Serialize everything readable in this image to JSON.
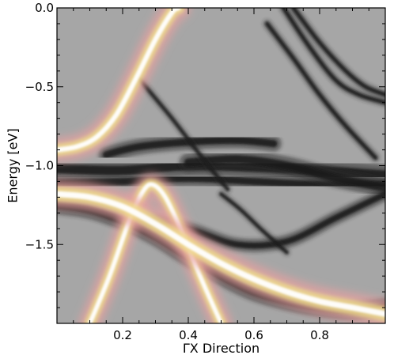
{
  "chart_data": {
    "type": "heatmap",
    "title": "",
    "xlabel": "ΓX Direction",
    "ylabel": "Energy [eV]",
    "xlim": [
      0.0,
      1.0
    ],
    "ylim": [
      -2.0,
      0.0
    ],
    "x_ticks": [
      {
        "value": 0.2,
        "label": "0.2"
      },
      {
        "value": 0.4,
        "label": "0.4"
      },
      {
        "value": 0.6,
        "label": "0.6"
      },
      {
        "value": 0.8,
        "label": "0.8"
      }
    ],
    "y_ticks": [
      {
        "value": 0.0,
        "label": "0.0"
      },
      {
        "value": -0.5,
        "label": "−0.5"
      },
      {
        "value": -1.0,
        "label": "−1.0"
      },
      {
        "value": -1.5,
        "label": "−1.5"
      }
    ],
    "background_color": "#a6a6a6",
    "series": [
      {
        "style": "dark",
        "width": 0.04,
        "x": [
          0.0,
          0.2,
          0.4,
          0.6,
          0.8,
          1.0
        ],
        "y": [
          -1.02,
          -1.03,
          -1.0,
          -1.01,
          -1.03,
          -1.06
        ]
      },
      {
        "style": "dark",
        "width": 0.03,
        "x": [
          0.0,
          0.2,
          0.4,
          0.6,
          0.8,
          1.0
        ],
        "y": [
          -1.11,
          -1.1,
          -1.08,
          -1.1,
          -1.12,
          -1.12
        ]
      },
      {
        "style": "dark",
        "width": 0.03,
        "x": [
          0.15,
          0.25,
          0.4,
          0.55,
          0.66
        ],
        "y": [
          -0.93,
          -0.88,
          -0.85,
          -0.84,
          -0.86
        ]
      },
      {
        "style": "dark",
        "width": 0.035,
        "x": [
          0.4,
          0.55,
          0.7,
          0.85,
          1.0
        ],
        "y": [
          -0.98,
          -0.96,
          -1.0,
          -1.08,
          -1.14
        ]
      },
      {
        "style": "dark",
        "width": 0.035,
        "x": [
          0.0,
          0.1,
          0.2,
          0.3,
          0.4,
          0.5,
          0.6,
          0.7,
          0.8,
          0.9,
          1.0
        ],
        "y": [
          -1.25,
          -1.28,
          -1.35,
          -1.45,
          -1.58,
          -1.7,
          -1.8,
          -1.86,
          -1.9,
          -1.92,
          -1.9
        ]
      },
      {
        "style": "dark",
        "width": 0.025,
        "x": [
          0.24,
          0.4,
          0.55,
          0.7,
          0.85,
          1.0
        ],
        "y": [
          -1.33,
          -1.4,
          -1.5,
          -1.48,
          -1.33,
          -1.18
        ]
      },
      {
        "style": "dark",
        "width": 0.015,
        "x": [
          0.72,
          0.8,
          0.88,
          0.94,
          1.0
        ],
        "y": [
          0.0,
          -0.22,
          -0.4,
          -0.5,
          -0.55
        ]
      },
      {
        "style": "dark",
        "width": 0.015,
        "x": [
          0.69,
          0.77,
          0.85,
          0.92,
          1.0
        ],
        "y": [
          0.0,
          -0.25,
          -0.46,
          -0.55,
          -0.6
        ]
      },
      {
        "style": "dark",
        "width": 0.015,
        "x": [
          0.64,
          0.72,
          0.8,
          0.88,
          0.97
        ],
        "y": [
          -0.1,
          -0.32,
          -0.55,
          -0.75,
          -0.95
        ]
      },
      {
        "style": "dark",
        "width": 0.012,
        "x": [
          0.25,
          0.35,
          0.45,
          0.52
        ],
        "y": [
          -0.45,
          -0.7,
          -0.97,
          -1.15
        ]
      },
      {
        "style": "dark",
        "width": 0.012,
        "x": [
          0.5,
          0.56,
          0.62,
          0.7
        ],
        "y": [
          -1.18,
          -1.28,
          -1.4,
          -1.55
        ]
      },
      {
        "style": "bright",
        "width": 0.05,
        "x": [
          0.0,
          0.06,
          0.12,
          0.18,
          0.24,
          0.3,
          0.35,
          0.37
        ],
        "y": [
          -0.9,
          -0.88,
          -0.82,
          -0.68,
          -0.45,
          -0.2,
          -0.03,
          0.0
        ]
      },
      {
        "style": "bright",
        "width": 0.045,
        "x": [
          0.1,
          0.16,
          0.22,
          0.26,
          0.29,
          0.33,
          0.38,
          0.44,
          0.5
        ],
        "y": [
          -2.0,
          -1.7,
          -1.35,
          -1.17,
          -1.12,
          -1.2,
          -1.42,
          -1.72,
          -2.0
        ]
      },
      {
        "style": "bright",
        "width": 0.06,
        "x": [
          0.0,
          0.1,
          0.2,
          0.3,
          0.4,
          0.5,
          0.6,
          0.7,
          0.8,
          0.9,
          1.0
        ],
        "y": [
          -1.18,
          -1.2,
          -1.26,
          -1.37,
          -1.5,
          -1.62,
          -1.72,
          -1.8,
          -1.86,
          -1.9,
          -1.94
        ]
      }
    ]
  }
}
